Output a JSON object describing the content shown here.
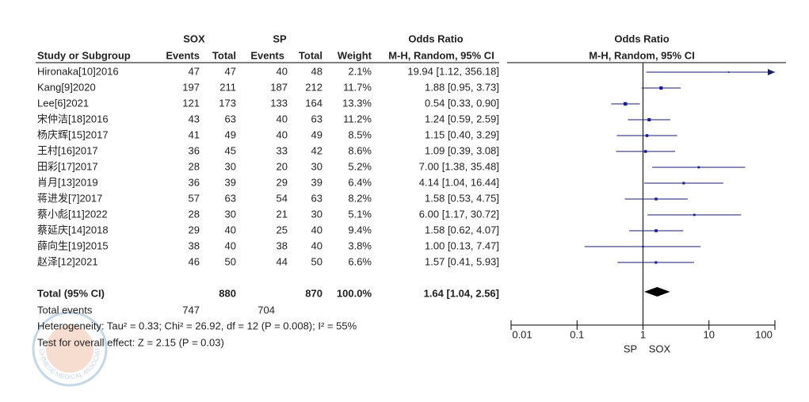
{
  "chart_data": {
    "type": "forest",
    "group_headers": [
      "SOX",
      "SP"
    ],
    "effect_header": "Odds Ratio",
    "effect_subheader": "M-H, Random, 95% CI",
    "plot_header": "Odds Ratio",
    "plot_subheader": "M-H, Random, 95% CI",
    "columns": [
      "Study or Subgroup",
      "Events",
      "Total",
      "Events",
      "Total",
      "Weight"
    ],
    "categories": [
      "Hironaka[10]2016",
      "Kang[9]2020",
      "Lee[6]2021",
      "宋仲洁[18]2016",
      "杨庆辉[15]2017",
      "王村[16]2017",
      "田彩[17]2017",
      "肖月[13]2019",
      "蒋进发[7]2017",
      "蔡小彪[11]2022",
      "蔡延庆[14]2018",
      "薛向生[19]2015",
      "赵泽[12]2021"
    ],
    "exp_events": [
      47,
      197,
      121,
      43,
      41,
      36,
      28,
      36,
      57,
      28,
      29,
      38,
      46
    ],
    "exp_total": [
      47,
      211,
      173,
      63,
      49,
      45,
      30,
      39,
      63,
      30,
      40,
      40,
      50
    ],
    "ctrl_events": [
      40,
      187,
      133,
      40,
      40,
      33,
      20,
      29,
      54,
      21,
      25,
      38,
      44
    ],
    "ctrl_total": [
      48,
      212,
      164,
      63,
      49,
      42,
      30,
      39,
      63,
      30,
      40,
      40,
      50
    ],
    "weight": [
      2.1,
      11.7,
      13.3,
      11.2,
      8.5,
      8.6,
      5.2,
      6.4,
      8.2,
      5.1,
      9.4,
      3.8,
      6.6
    ],
    "weight_labels": [
      "2.1%",
      "11.7%",
      "13.3%",
      "11.2%",
      "8.5%",
      "8.6%",
      "5.2%",
      "6.4%",
      "8.2%",
      "5.1%",
      "9.4%",
      "3.8%",
      "6.6%"
    ],
    "values": [
      19.94,
      1.88,
      0.54,
      1.24,
      1.15,
      1.09,
      7.0,
      4.14,
      1.58,
      6.0,
      1.58,
      1.0,
      1.57
    ],
    "lower": [
      1.12,
      0.95,
      0.33,
      0.59,
      0.4,
      0.39,
      1.38,
      1.04,
      0.53,
      1.17,
      0.62,
      0.13,
      0.41
    ],
    "upper": [
      356.18,
      3.73,
      0.9,
      2.59,
      3.29,
      3.08,
      35.48,
      16.44,
      4.75,
      30.72,
      4.07,
      7.47,
      5.93
    ],
    "value_labels": [
      "19.94 [1.12, 356.18]",
      "1.88 [0.95, 3.73]",
      "0.54 [0.33, 0.90]",
      "1.24 [0.59, 2.59]",
      "1.15 [0.40, 3.29]",
      "1.09 [0.39, 3.08]",
      "7.00 [1.38, 35.48]",
      "4.14 [1.04, 16.44]",
      "1.58 [0.53, 4.75]",
      "6.00 [1.17, 30.72]",
      "1.58 [0.62, 4.07]",
      "1.00 [0.13, 7.47]",
      "1.57 [0.41, 5.93]"
    ],
    "total": {
      "label": "Total (95% CI)",
      "exp_total": 880,
      "ctrl_total": 870,
      "weight": 100.0,
      "weight_label": "100.0%",
      "value": 1.64,
      "lower": 1.04,
      "upper": 2.56,
      "value_label": "1.64 [1.04, 2.56]"
    },
    "total_events": {
      "label": "Total events",
      "exp": 747,
      "ctrl": 704
    },
    "heterogeneity": "Heterogeneity: Tau² = 0.33; Chi² = 26.92, df = 12 (P = 0.008); I² = 55%",
    "overall_effect": "Test for overall effect: Z = 2.15 (P = 0.03)",
    "xlim": [
      0.01,
      100
    ],
    "xticks": [
      0.01,
      0.1,
      1,
      10,
      100
    ],
    "log": true,
    "favours": [
      "SP",
      "SOX"
    ],
    "color": "#1a1a9c",
    "watermark": "CHINESE MEDICAL ASSOCIATION"
  }
}
